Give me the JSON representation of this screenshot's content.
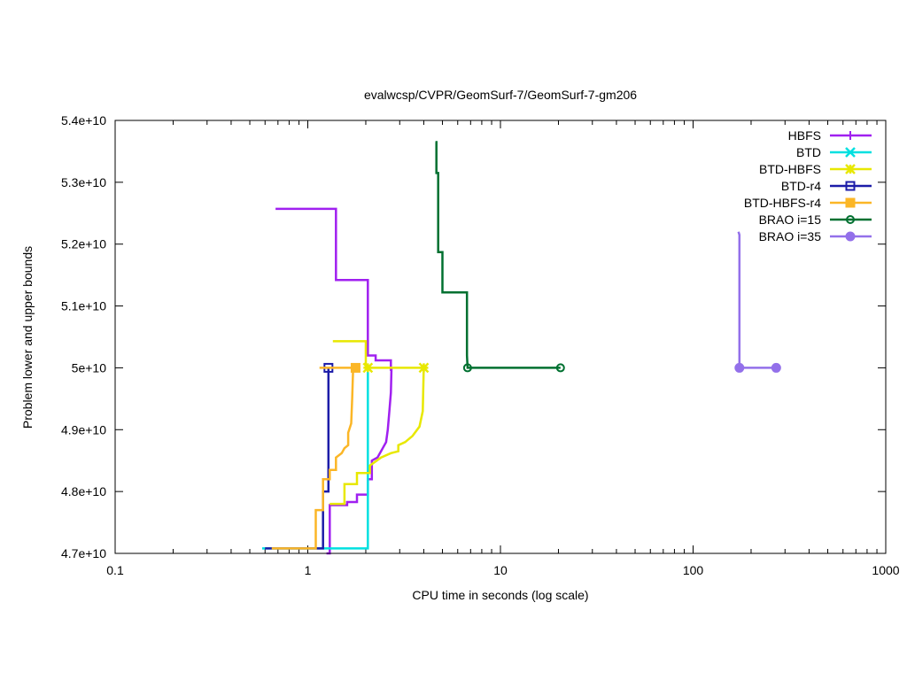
{
  "chart_data": {
    "type": "line",
    "title": "evalwcsp/CVPR/GeomSurf-7/GeomSurf-7-gm206",
    "xlabel": "CPU time in seconds (log scale)",
    "ylabel": "Problem lower and upper bounds",
    "xscale": "log",
    "xlim": [
      0.1,
      1000
    ],
    "ylim": [
      47000000000,
      54000000000
    ],
    "x_ticks": [
      {
        "value": 0.1,
        "label": "0.1"
      },
      {
        "value": 1,
        "label": "1"
      },
      {
        "value": 10,
        "label": "10"
      },
      {
        "value": 100,
        "label": "100"
      },
      {
        "value": 1000,
        "label": "1000"
      }
    ],
    "y_ticks": [
      {
        "value": 47000000000,
        "label": "4.7e+10"
      },
      {
        "value": 48000000000,
        "label": "4.8e+10"
      },
      {
        "value": 49000000000,
        "label": "4.9e+10"
      },
      {
        "value": 50000000000,
        "label": "5e+10"
      },
      {
        "value": 51000000000,
        "label": "5.1e+10"
      },
      {
        "value": 52000000000,
        "label": "5.2e+10"
      },
      {
        "value": 53000000000,
        "label": "5.3e+10"
      },
      {
        "value": 54000000000,
        "label": "5.4e+10"
      }
    ],
    "legend_position": "top-right",
    "grid": false,
    "series": [
      {
        "name": "HBFS",
        "color": "#a020f0",
        "marker": "plus",
        "lines": [
          [
            [
              0.68,
              52570000000
            ],
            [
              1.4,
              52570000000
            ],
            [
              1.4,
              51420000000
            ],
            [
              2.05,
              51420000000
            ],
            [
              2.05,
              50200000000
            ],
            [
              2.25,
              50200000000
            ],
            [
              2.25,
              50120000000
            ],
            [
              2.7,
              50120000000
            ],
            [
              2.7,
              49950000000
            ]
          ],
          [
            [
              1.25,
              47000000000
            ],
            [
              1.3,
              47000000000
            ],
            [
              1.3,
              47780000000
            ],
            [
              1.6,
              47780000000
            ],
            [
              1.6,
              47830000000
            ],
            [
              1.8,
              47830000000
            ],
            [
              1.8,
              47950000000
            ],
            [
              2.05,
              47950000000
            ],
            [
              2.05,
              48200000000
            ],
            [
              2.15,
              48200000000
            ],
            [
              2.15,
              48500000000
            ],
            [
              2.3,
              48550000000
            ],
            [
              2.45,
              48700000000
            ],
            [
              2.55,
              48800000000
            ],
            [
              2.6,
              49000000000
            ],
            [
              2.65,
              49300000000
            ],
            [
              2.7,
              49600000000
            ],
            [
              2.72,
              50000000000
            ]
          ]
        ],
        "markers": []
      },
      {
        "name": "BTD",
        "color": "#00e0e0",
        "marker": "x",
        "lines": [
          [
            [
              0.58,
              47080000000
            ],
            [
              2.05,
              47080000000
            ],
            [
              2.05,
              50000000000
            ]
          ]
        ],
        "markers": []
      },
      {
        "name": "BTD-HBFS",
        "color": "#e8e800",
        "marker": "star",
        "lines": [
          [
            [
              1.35,
              50430000000
            ],
            [
              2.0,
              50430000000
            ],
            [
              2.0,
              50000000000
            ],
            [
              4.0,
              50000000000
            ]
          ],
          [
            [
              1.3,
              47800000000
            ],
            [
              1.55,
              47800000000
            ],
            [
              1.55,
              48120000000
            ],
            [
              1.8,
              48120000000
            ],
            [
              1.8,
              48300000000
            ],
            [
              2.1,
              48300000000
            ],
            [
              2.1,
              48420000000
            ],
            [
              2.4,
              48550000000
            ],
            [
              2.7,
              48620000000
            ],
            [
              2.95,
              48650000000
            ],
            [
              2.95,
              48750000000
            ],
            [
              3.2,
              48800000000
            ],
            [
              3.5,
              48900000000
            ],
            [
              3.8,
              49050000000
            ],
            [
              3.95,
              49300000000
            ],
            [
              4.0,
              50000000000
            ]
          ]
        ],
        "markers": [
          [
            2.05,
            50000000000
          ],
          [
            4.0,
            50000000000
          ]
        ]
      },
      {
        "name": "BTD-r4",
        "color": "#1c1ca8",
        "marker": "open-square",
        "lines": [
          [
            [
              0.6,
              47080000000
            ],
            [
              1.2,
              47080000000
            ],
            [
              1.2,
              48000000000
            ],
            [
              1.28,
              48000000000
            ],
            [
              1.28,
              50000000000
            ]
          ]
        ],
        "markers": [
          [
            1.28,
            50000000000
          ]
        ]
      },
      {
        "name": "BTD-HBFS-r4",
        "color": "#fbb626",
        "marker": "filled-square",
        "lines": [
          [
            [
              1.15,
              50000000000
            ],
            [
              1.72,
              50000000000
            ]
          ],
          [
            [
              0.65,
              47080000000
            ],
            [
              1.1,
              47080000000
            ],
            [
              1.1,
              47700000000
            ],
            [
              1.2,
              47700000000
            ],
            [
              1.2,
              48200000000
            ],
            [
              1.3,
              48200000000
            ],
            [
              1.3,
              48350000000
            ],
            [
              1.4,
              48350000000
            ],
            [
              1.4,
              48550000000
            ],
            [
              1.5,
              48620000000
            ],
            [
              1.55,
              48700000000
            ],
            [
              1.62,
              48750000000
            ],
            [
              1.62,
              48950000000
            ],
            [
              1.68,
              49100000000
            ],
            [
              1.7,
              49500000000
            ],
            [
              1.72,
              50000000000
            ],
            [
              1.82,
              50000000000
            ]
          ]
        ],
        "markers": [
          [
            1.77,
            50000000000
          ]
        ]
      },
      {
        "name": "BRAO i=15",
        "color": "#007030",
        "marker": "open-circle",
        "lines": [
          [
            [
              4.6,
              53650000000
            ],
            [
              4.65,
              53650000000
            ],
            [
              4.65,
              53150000000
            ],
            [
              4.75,
              53150000000
            ],
            [
              4.75,
              51870000000
            ],
            [
              5.0,
              51870000000
            ],
            [
              5.0,
              51220000000
            ],
            [
              6.7,
              51220000000
            ],
            [
              6.7,
              50200000000
            ],
            [
              6.75,
              50000000000
            ],
            [
              20.5,
              50000000000
            ]
          ]
        ],
        "markers": [
          [
            6.75,
            50000000000
          ],
          [
            20.5,
            50000000000
          ]
        ]
      },
      {
        "name": "BRAO i=35",
        "color": "#9370ea",
        "marker": "filled-circle",
        "lines": [
          [
            [
              172,
              52200000000
            ],
            [
              174,
              52150000000
            ],
            [
              174,
              50000000000
            ],
            [
              270,
              50000000000
            ]
          ]
        ],
        "markers": [
          [
            174,
            50000000000
          ],
          [
            270,
            50000000000
          ]
        ]
      }
    ]
  }
}
